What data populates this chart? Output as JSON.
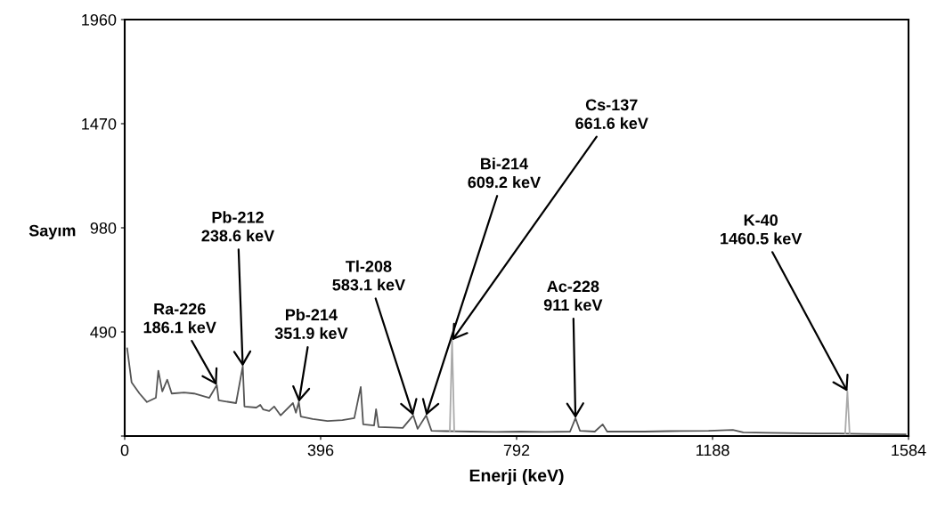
{
  "chart_data": {
    "type": "line",
    "xlabel": "Enerji (keV)",
    "ylabel": "Sayım",
    "xlim": [
      0,
      1584
    ],
    "xticks": [
      0,
      396,
      792,
      1188,
      1584
    ],
    "ylim": [
      0,
      1960
    ],
    "yticks": [
      {
        "value": 0,
        "label": null
      },
      490,
      980,
      1470,
      1960
    ],
    "grid": false,
    "legend": false,
    "series": [
      {
        "color": "#555555",
        "x": [
          5,
          14,
          30,
          45,
          63,
          68,
          76,
          86,
          95,
          120,
          140,
          171,
          186.1,
          190,
          225,
          238.6,
          242,
          266,
          274,
          280,
          292,
          302,
          315,
          340,
          346,
          351.9,
          356,
          380,
          410,
          440,
          464,
          477,
          482,
          504,
          508,
          513,
          540,
          562,
          583.1,
          592,
          609.2,
          620,
          650,
          700,
          750,
          800,
          850,
          900,
          911,
          920,
          950,
          966,
          975,
          1050,
          1100,
          1180,
          1229,
          1250,
          1300,
          1400,
          1440,
          1490,
          1578
        ],
        "values": [
          412,
          252,
          200,
          160,
          180,
          307,
          210,
          265,
          200,
          205,
          200,
          180,
          240,
          168,
          155,
          328,
          139,
          134,
          147,
          125,
          118,
          139,
          97,
          155,
          110,
          160,
          92,
          80,
          71,
          75,
          84,
          231,
          55,
          50,
          126,
          42,
          40,
          38,
          97,
          34,
          97,
          25,
          23,
          21,
          19,
          21,
          19,
          21,
          84,
          25,
          21,
          55,
          21,
          21,
          23,
          25,
          29,
          17,
          15,
          12,
          12,
          10,
          8
        ]
      },
      {
        "color": "#aaaaaa",
        "x": [
          657,
          661.6,
          666,
          800,
          1456,
          1460.5,
          1465
        ],
        "values": [
          21,
          450,
          21,
          null,
          12,
          210,
          10
        ]
      }
    ],
    "annotations": [
      {
        "text": "Ra-226\n186.1 keV",
        "x": 186.1,
        "y": 240
      },
      {
        "text": "Pb-212\n238.6 keV",
        "x": 238.6,
        "y": 328
      },
      {
        "text": "Pb-214\n351.9 keV",
        "x": 351.9,
        "y": 160
      },
      {
        "text": "Tl-208\n583.1 keV",
        "x": 583.1,
        "y": 97
      },
      {
        "text": "Bi-214\n609.2 keV",
        "x": 609.2,
        "y": 97
      },
      {
        "text": "Cs-137\n661.6 keV",
        "x": 661.6,
        "y": 450
      },
      {
        "text": "Ac-228\n911 keV",
        "x": 911,
        "y": 84
      },
      {
        "text": "K-40\n1460.5 keV",
        "x": 1460.5,
        "y": 210
      }
    ]
  }
}
